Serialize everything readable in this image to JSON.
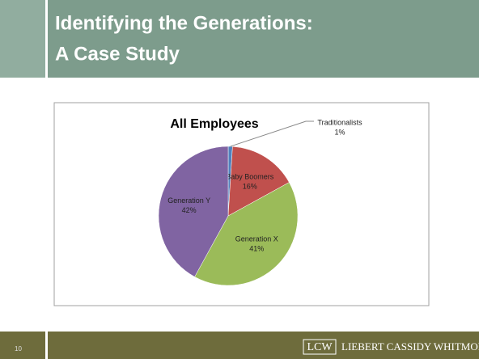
{
  "slide": {
    "title_lines": [
      "Identifying the Generations:",
      "A Case Study"
    ],
    "page_number": "10",
    "logo_mark": "LCW",
    "firm": "Liebert Cassidy Whitmore"
  },
  "chart_data": {
    "type": "pie",
    "title": "All Employees",
    "categories": [
      "Traditionalists",
      "Baby Boomers",
      "Generation X",
      "Generation Y"
    ],
    "values": [
      1,
      16,
      41,
      42
    ],
    "value_labels": [
      "1%",
      "16%",
      "41%",
      "42%"
    ],
    "colors": [
      "#4f81bd",
      "#c0504d",
      "#9bbb59",
      "#8064a2"
    ]
  }
}
